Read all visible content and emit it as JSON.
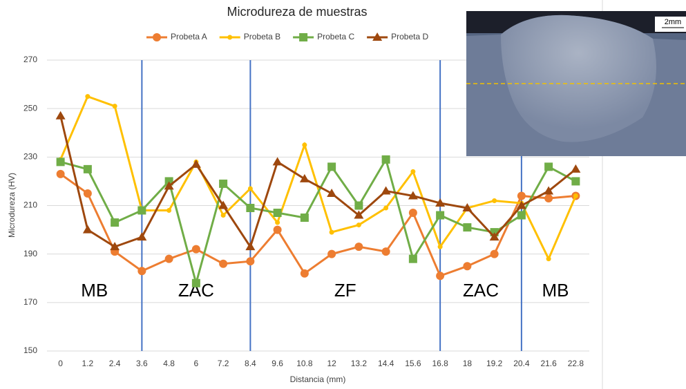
{
  "chart_data": {
    "type": "line",
    "title": "Microdureza de muestras",
    "x_label": "Distancia (mm)",
    "y_label": "Microdureza (HV)",
    "x": [
      0,
      1.2,
      2.4,
      3.6,
      4.8,
      6,
      7.2,
      8.4,
      9.6,
      10.8,
      12,
      13.2,
      14.4,
      15.6,
      16.8,
      18,
      19.2,
      20.4,
      21.6,
      22.8
    ],
    "xlim": [
      -0.6,
      23.4
    ],
    "xticks": [
      0,
      1.2,
      2.4,
      3.6,
      4.8,
      6,
      7.2,
      8.4,
      9.6,
      10.8,
      12,
      13.2,
      14.4,
      15.6,
      16.8,
      18,
      19.2,
      20.4,
      21.6,
      22.8
    ],
    "ylim": [
      150,
      270
    ],
    "yticks": [
      150,
      170,
      190,
      210,
      230,
      250,
      270
    ],
    "grid": true,
    "zone_lines": [
      3.6,
      8.4,
      16.8,
      20.4
    ],
    "zone_line_color": "#4472c4",
    "zones": [
      "MB",
      "ZAC",
      "ZF",
      "ZAC",
      "MB"
    ],
    "legend": "top",
    "series": [
      {
        "name": "Probeta A",
        "color": "#ed7d31",
        "marker": "circle",
        "values": [
          223,
          215,
          191,
          183,
          188,
          192,
          186,
          187,
          200,
          182,
          190,
          193,
          191,
          207,
          181,
          185,
          190,
          214,
          213,
          214
        ]
      },
      {
        "name": "Probeta B",
        "color": "#ffc000",
        "marker": "dot",
        "values": [
          229,
          255,
          251,
          208,
          208,
          228,
          206,
          217,
          203,
          235,
          199,
          202,
          209,
          224,
          193,
          209,
          212,
          211,
          188,
          214
        ]
      },
      {
        "name": "Probeta C",
        "color": "#70ad47",
        "marker": "square",
        "values": [
          228,
          225,
          203,
          208,
          220,
          178,
          219,
          209,
          207,
          205,
          226,
          210,
          229,
          188,
          206,
          201,
          199,
          206,
          226,
          220
        ]
      },
      {
        "name": "Probeta D",
        "color": "#9e480e",
        "marker": "triangle",
        "values": [
          247,
          200,
          193,
          197,
          218,
          227,
          210,
          193,
          228,
          221,
          215,
          206,
          216,
          214,
          211,
          209,
          197,
          210,
          216,
          225
        ]
      }
    ]
  },
  "inset": {
    "scale_label": "2mm"
  }
}
